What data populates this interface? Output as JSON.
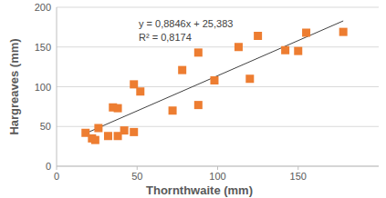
{
  "chart_data": {
    "type": "scatter",
    "x_label": "Thornthwaite (mm)",
    "y_label": "Hargreaves (mm)",
    "x": [
      18,
      22,
      24,
      26,
      32,
      35,
      38,
      38,
      42,
      48,
      48,
      52,
      72,
      78,
      88,
      88,
      98,
      113,
      120,
      125,
      142,
      150,
      155,
      178
    ],
    "values": [
      42,
      35,
      33,
      48,
      38,
      74,
      73,
      38,
      45,
      103,
      43,
      94,
      70,
      121,
      143,
      77,
      108,
      150,
      110,
      164,
      146,
      145,
      168,
      169
    ],
    "color": "#ed7d31",
    "marker": "square",
    "xlim": [
      0,
      200
    ],
    "xticks": [
      0,
      50,
      100,
      150
    ],
    "ylim": [
      0,
      200
    ],
    "yticks": [
      0,
      50,
      100,
      150,
      200
    ],
    "grid": true,
    "trendline": {
      "slope": 0.8846,
      "intercept": 25.383,
      "label": "y = 0,8846x + 25,383",
      "r2": 0.8174,
      "r2_label": "R² = 0,8174"
    }
  }
}
